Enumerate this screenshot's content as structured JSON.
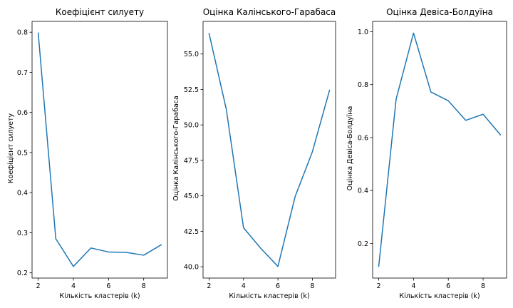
{
  "chart_data": [
    {
      "type": "line",
      "title": "Коефіцієнт силуету",
      "xlabel": "Кількість кластерів (k)",
      "ylabel": "Коефіцієнт силуету",
      "x": [
        2,
        3,
        4,
        5,
        6,
        7,
        8,
        9
      ],
      "series": [
        {
          "values": [
            0.798,
            0.285,
            0.216,
            0.262,
            0.252,
            0.251,
            0.244,
            0.27
          ]
        }
      ],
      "xlim": [
        1.65,
        9.35
      ],
      "ylim": [
        0.187,
        0.827
      ],
      "xticks": [
        "2",
        "4",
        "6",
        "8"
      ],
      "yticks": [
        "0.2",
        "0.3",
        "0.4",
        "0.5",
        "0.6",
        "0.7",
        "0.8"
      ],
      "line_color": "#1f77b4",
      "grid": false
    },
    {
      "type": "line",
      "title": "Оцінка Калінського-Гарабаса",
      "xlabel": "Кількість кластерів (k)",
      "ylabel": "Оцінка Калінського-Гарабаса",
      "x": [
        2,
        3,
        4,
        5,
        6,
        7,
        8,
        9
      ],
      "series": [
        {
          "values": [
            56.45,
            51.1,
            42.75,
            41.3,
            40.02,
            44.95,
            48.1,
            52.45
          ]
        }
      ],
      "xlim": [
        1.65,
        9.35
      ],
      "ylim": [
        39.2,
        57.3
      ],
      "xticks": [
        "2",
        "4",
        "6",
        "8"
      ],
      "yticks": [
        "40.0",
        "42.5",
        "45.0",
        "47.5",
        "50.0",
        "52.5",
        "55.0"
      ],
      "line_color": "#1f77b4",
      "grid": false
    },
    {
      "type": "line",
      "title": "Оцінка Девіса-Болдуїна",
      "xlabel": "Кількість кластерів (k)",
      "ylabel": "Оцінка Девіса-Болдуїна",
      "x": [
        2,
        3,
        4,
        5,
        6,
        7,
        8,
        9
      ],
      "series": [
        {
          "values": [
            0.113,
            0.745,
            0.995,
            0.772,
            0.739,
            0.665,
            0.688,
            0.61
          ]
        }
      ],
      "xlim": [
        1.65,
        9.35
      ],
      "ylim": [
        0.069,
        1.039
      ],
      "xticks": [
        "2",
        "4",
        "6",
        "8"
      ],
      "yticks": [
        "0.2",
        "0.4",
        "0.6",
        "0.8",
        "1.0"
      ],
      "line_color": "#1f77b4",
      "grid": false
    }
  ]
}
